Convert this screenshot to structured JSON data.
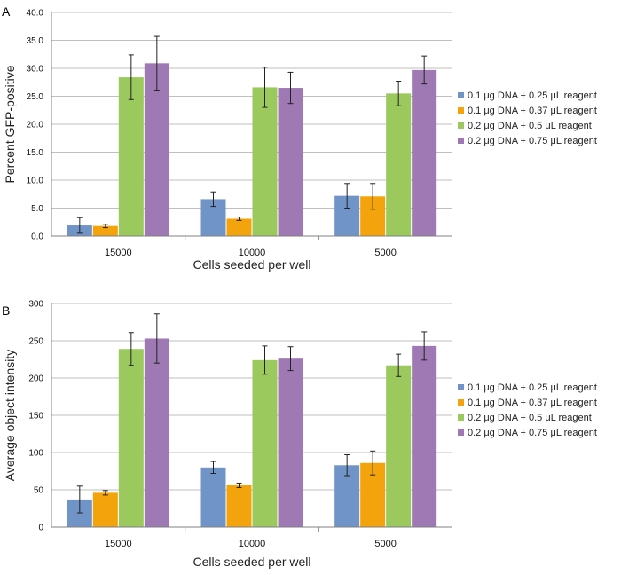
{
  "colors": {
    "series": [
      "#7094c8",
      "#f3a30b",
      "#9bc95d",
      "#9e79b3"
    ],
    "grid": "#bfbfbf",
    "axis": "#808080",
    "error_bar": "#222222"
  },
  "chart_data": [
    {
      "type": "bar",
      "panel": "A",
      "ylabel": "Percent GFP-positive",
      "xlabel": "Cells seeded per well",
      "ylim": [
        0,
        40
      ],
      "ytick_step": 5,
      "ytick_decimals": 1,
      "grid": true,
      "legend_position": "right",
      "categories": [
        "15000",
        "10000",
        "5000"
      ],
      "series": [
        {
          "name": "0.1 μg DNA + 0.25 μL reagent",
          "values": [
            1.9,
            6.6,
            7.2
          ],
          "errors": [
            1.4,
            1.3,
            2.2
          ]
        },
        {
          "name": "0.1 μg DNA + 0.37 μL reagent",
          "values": [
            1.8,
            3.1,
            7.1
          ],
          "errors": [
            0.3,
            0.3,
            2.3
          ]
        },
        {
          "name": "0.2 μg DNA + 0.5 μL reagent",
          "values": [
            28.4,
            26.6,
            25.5
          ],
          "errors": [
            4.0,
            3.6,
            2.2
          ]
        },
        {
          "name": "0.2 μg DNA + 0.75 μL reagent",
          "values": [
            30.9,
            26.5,
            29.7
          ],
          "errors": [
            4.8,
            2.8,
            2.5
          ]
        }
      ]
    },
    {
      "type": "bar",
      "panel": "B",
      "ylabel": "Average object intensity",
      "xlabel": "Cells seeded per well",
      "ylim": [
        0,
        300
      ],
      "ytick_step": 50,
      "ytick_decimals": 0,
      "grid": true,
      "legend_position": "right",
      "categories": [
        "15000",
        "10000",
        "5000"
      ],
      "series": [
        {
          "name": "0.1 μg DNA + 0.25 μL reagent",
          "values": [
            37,
            80,
            83
          ],
          "errors": [
            18,
            8,
            14
          ]
        },
        {
          "name": "0.1 μg DNA + 0.37 μL reagent",
          "values": [
            46,
            56,
            86
          ],
          "errors": [
            3,
            3,
            16
          ]
        },
        {
          "name": "0.2 μg DNA + 0.5 μL reagent",
          "values": [
            239,
            224,
            217
          ],
          "errors": [
            22,
            19,
            15
          ]
        },
        {
          "name": "0.2 μg DNA + 0.75 μL reagent",
          "values": [
            253,
            226,
            243
          ],
          "errors": [
            33,
            16,
            19
          ]
        }
      ]
    }
  ]
}
